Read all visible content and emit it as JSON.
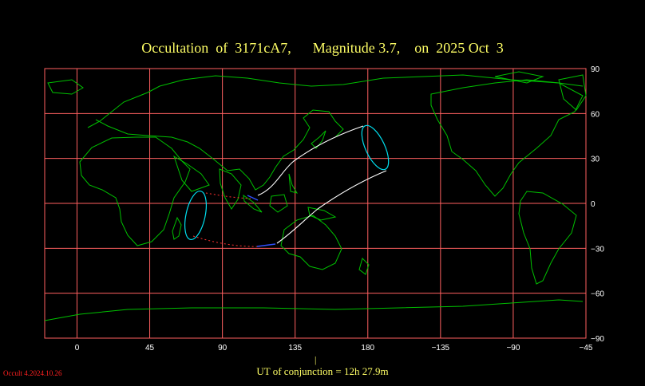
{
  "title": "Occultation  of  3171cA7,      Magnitude 3.7,    on  2025 Oct  3",
  "map": {
    "projection": "equirectangular",
    "lon_range": [
      -20,
      315
    ],
    "lat_range": [
      -90,
      90
    ],
    "lon_tick_labels": [
      "0",
      "45",
      "90",
      "135",
      "180",
      "−135",
      "−90",
      "−45"
    ],
    "lat_tick_labels": [
      "90",
      "60",
      "30",
      "0",
      "−30",
      "−60",
      "−90"
    ],
    "grid_color": "#ff6060",
    "coast_color": "#00c000",
    "path_color": "#ffffff",
    "ellipse_color": "#00e0f0",
    "dotted_color": "#ff3030",
    "end_segment_color": "#3050ff"
  },
  "conjunction": {
    "tick": "|",
    "text": "UT of conjunction = 12h 27.9m"
  },
  "version": "Occult 4.2024.10.26"
}
